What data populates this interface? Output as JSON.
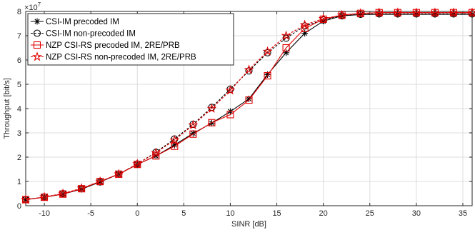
{
  "chart_data": {
    "type": "line",
    "xlabel": "SINR [dB]",
    "ylabel": "Throughput [bit/s]",
    "y_exponent_label": "×10",
    "y_exponent_power": "7",
    "xlim": [
      -12,
      36
    ],
    "ylim": [
      0,
      8
    ],
    "xticks": [
      -10,
      -5,
      0,
      5,
      10,
      15,
      20,
      25,
      30,
      35
    ],
    "yticks": [
      0,
      1,
      2,
      3,
      4,
      5,
      6,
      7,
      8
    ],
    "grid": true,
    "legend_position": "top-left",
    "x": [
      -12,
      -10,
      -8,
      -6,
      -4,
      -2,
      0,
      2,
      4,
      6,
      8,
      10,
      12,
      14,
      16,
      18,
      20,
      22,
      24,
      26,
      28,
      30,
      32,
      34,
      36
    ],
    "series": [
      {
        "name": "CSI-IM precoded IM",
        "color": "#000000",
        "marker": "asterisk",
        "dash": "solid",
        "values": [
          0.25,
          0.35,
          0.48,
          0.68,
          0.98,
          1.3,
          1.7,
          2.05,
          2.5,
          2.98,
          3.4,
          3.88,
          4.4,
          5.4,
          6.3,
          7.1,
          7.6,
          7.82,
          7.87,
          7.88,
          7.88,
          7.88,
          7.88,
          7.88,
          7.88
        ]
      },
      {
        "name": "CSI-IM non-precoded IM",
        "color": "#000000",
        "marker": "circle",
        "dash": "dashed",
        "values": [
          0.25,
          0.36,
          0.5,
          0.7,
          0.98,
          1.3,
          1.72,
          2.2,
          2.75,
          3.35,
          4.05,
          4.8,
          5.55,
          6.3,
          6.9,
          7.4,
          7.65,
          7.82,
          7.88,
          7.9,
          7.9,
          7.9,
          7.9,
          7.9,
          7.9
        ]
      },
      {
        "name": "NZP CSI-RS precoded IM, 2RE/PRB",
        "color": "#e00000",
        "marker": "square",
        "dash": "solid",
        "values": [
          0.25,
          0.35,
          0.48,
          0.7,
          1.0,
          1.3,
          1.7,
          2.05,
          2.45,
          2.95,
          3.42,
          3.75,
          4.35,
          5.35,
          6.5,
          7.3,
          7.68,
          7.85,
          7.92,
          7.95,
          7.95,
          7.95,
          7.95,
          7.95,
          7.95
        ]
      },
      {
        "name": "NZP CSI-RS non-precoded IM, 2RE/PRB",
        "color": "#e00000",
        "marker": "star",
        "dash": "dashed",
        "values": [
          0.25,
          0.36,
          0.5,
          0.72,
          1.0,
          1.3,
          1.72,
          2.18,
          2.7,
          3.32,
          4.0,
          4.75,
          5.6,
          6.35,
          7.0,
          7.45,
          7.7,
          7.85,
          7.92,
          7.95,
          7.95,
          7.95,
          7.95,
          7.95,
          7.95
        ]
      }
    ]
  }
}
